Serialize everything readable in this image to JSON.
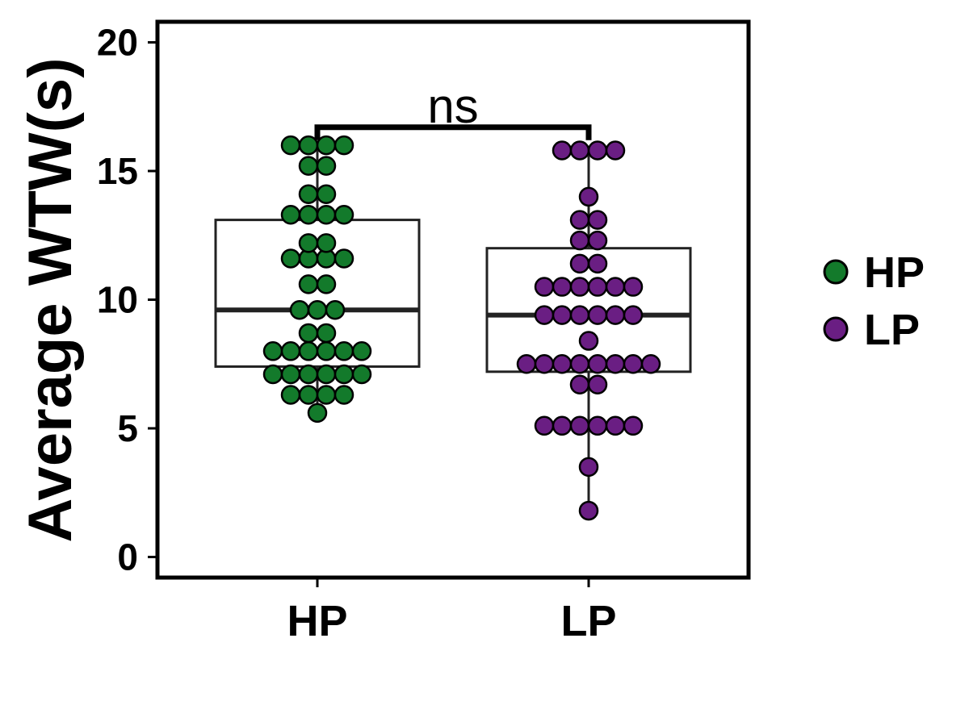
{
  "chart_data": {
    "type": "box",
    "ylabel": "Average WTW(s)",
    "xlabel": "",
    "ylim": [
      -0.8,
      20.8
    ],
    "yticks": [
      0,
      5,
      10,
      15,
      20
    ],
    "categories": [
      "HP",
      "LP"
    ],
    "colors": {
      "HP": "#137a2b",
      "LP": "#6a1e83"
    },
    "box_color": "#222222",
    "series": [
      {
        "name": "HP",
        "box": {
          "whisker_low": 5.6,
          "q1": 7.4,
          "median": 9.6,
          "q3": 13.1,
          "whisker_high": 16.0
        },
        "points": [
          5.6,
          6.3,
          6.3,
          6.3,
          6.3,
          7.1,
          7.1,
          7.1,
          7.1,
          7.1,
          7.1,
          8.0,
          8.0,
          8.0,
          8.0,
          8.0,
          8.0,
          8.7,
          8.7,
          9.6,
          9.6,
          9.6,
          10.6,
          10.6,
          11.6,
          11.6,
          11.6,
          11.6,
          12.2,
          12.2,
          13.3,
          13.3,
          13.3,
          13.3,
          14.1,
          14.1,
          15.2,
          15.2,
          16.0,
          16.0,
          16.0,
          16.0
        ]
      },
      {
        "name": "LP",
        "box": {
          "whisker_low": 1.8,
          "q1": 7.2,
          "median": 9.4,
          "q3": 12.0,
          "whisker_high": 15.8
        },
        "points": [
          1.8,
          3.5,
          5.1,
          5.1,
          5.1,
          5.1,
          5.1,
          5.1,
          6.7,
          6.7,
          7.5,
          7.5,
          7.5,
          7.5,
          7.5,
          7.5,
          7.5,
          7.5,
          8.4,
          9.4,
          9.4,
          9.4,
          9.4,
          9.4,
          9.4,
          10.5,
          10.5,
          10.5,
          10.5,
          10.5,
          10.5,
          11.4,
          11.4,
          12.3,
          12.3,
          13.1,
          13.1,
          14.0,
          15.8,
          15.8,
          15.8,
          15.8
        ]
      }
    ],
    "annotations": [
      {
        "text": "ns",
        "between": [
          "HP",
          "LP"
        ],
        "y": 16.7
      }
    ],
    "legend": {
      "position": "right",
      "entries": [
        "HP",
        "LP"
      ]
    },
    "grid": false
  }
}
